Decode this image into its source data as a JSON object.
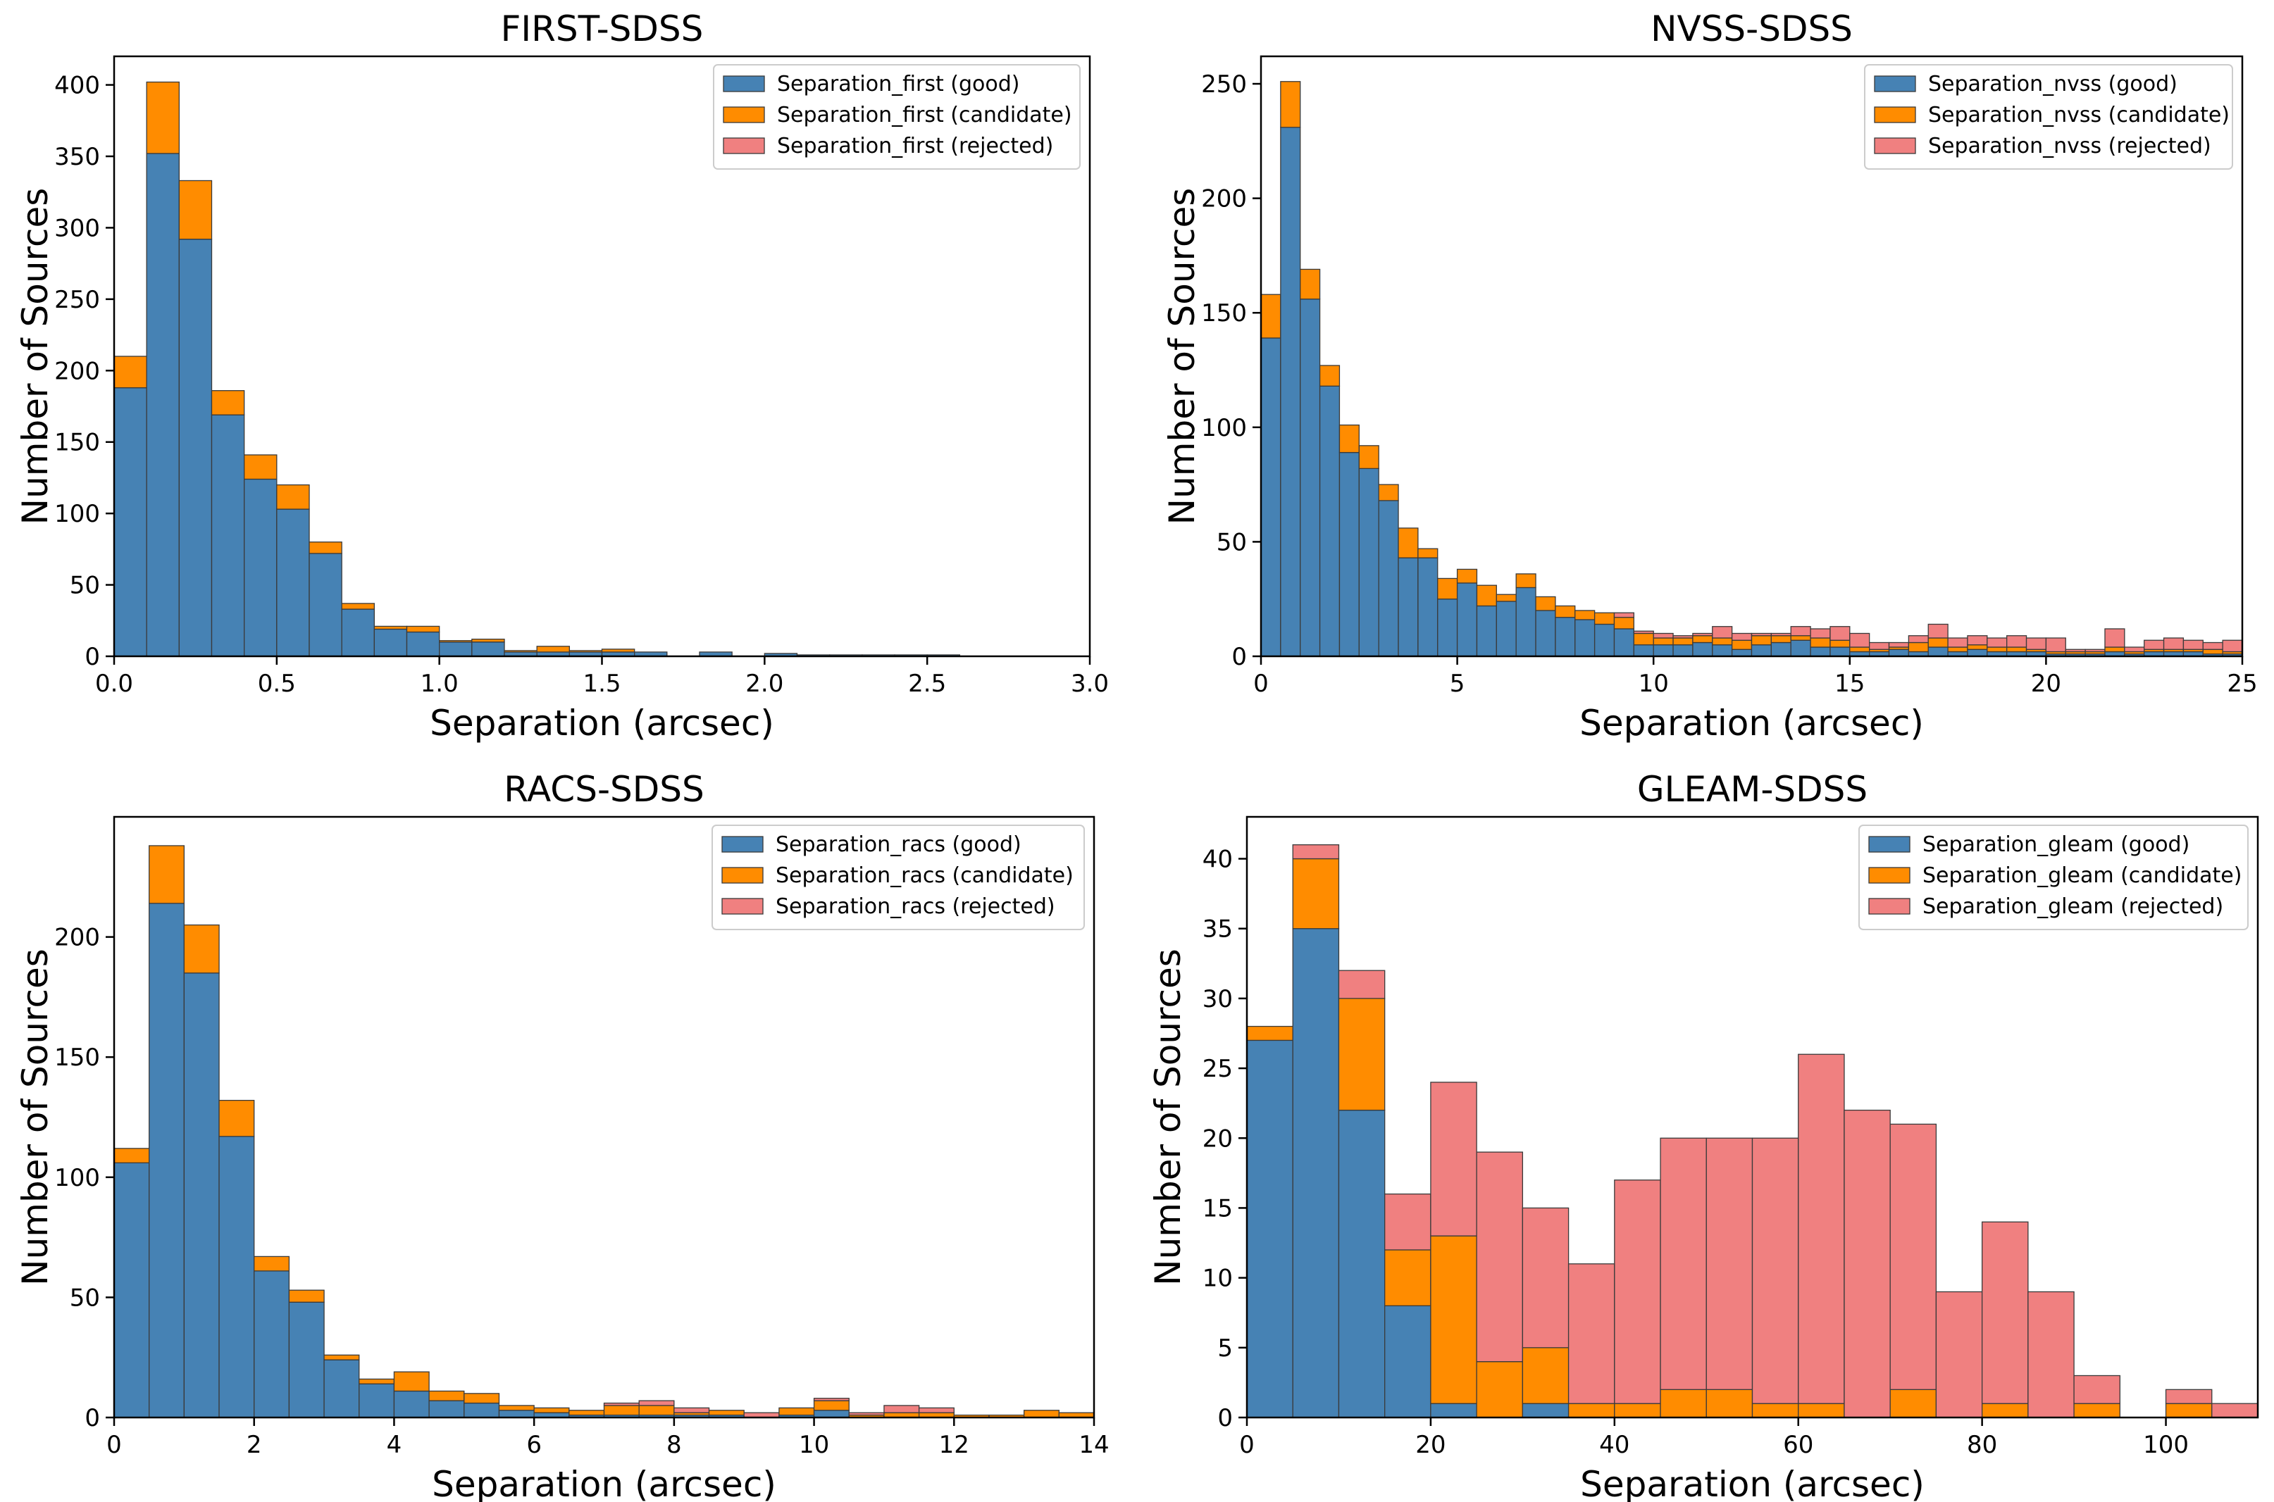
{
  "colors": {
    "good": "#4682b4",
    "candidate": "#ff8c00",
    "rejected": "#f08080"
  },
  "chart_data": [
    {
      "type": "bar",
      "stacked": true,
      "title": "FIRST-SDSS",
      "xlabel": "Separation (arcsec)",
      "ylabel": "Number of Sources",
      "xlim": [
        0,
        3.0
      ],
      "ylim": [
        0,
        420
      ],
      "xticks": [
        "0.0",
        "0.5",
        "1.0",
        "1.5",
        "2.0",
        "2.5",
        "3.0"
      ],
      "yticks": [
        "0",
        "50",
        "100",
        "150",
        "200",
        "250",
        "300",
        "350",
        "400"
      ],
      "legend_position": "top-right",
      "legend": [
        "Separation_first (good)",
        "Separation_first (candidate)",
        "Separation_first (rejected)"
      ],
      "bin_edges": [
        0,
        0.1,
        0.2,
        0.3,
        0.4,
        0.5,
        0.6,
        0.7,
        0.8,
        0.9,
        1.0,
        1.1,
        1.2,
        1.3,
        1.4,
        1.5,
        1.6,
        1.7,
        1.8,
        1.9,
        2.0,
        2.1,
        2.2,
        2.3,
        2.4,
        2.5,
        2.6
      ],
      "series": [
        {
          "name": "good",
          "values": [
            188,
            352,
            292,
            169,
            124,
            103,
            72,
            33,
            19,
            17,
            10,
            10,
            3,
            3,
            3,
            3,
            3,
            0,
            3,
            0,
            2,
            1,
            1,
            1,
            1,
            1
          ]
        },
        {
          "name": "candidate",
          "values": [
            22,
            50,
            41,
            17,
            17,
            17,
            8,
            4,
            2,
            4,
            1,
            2,
            1,
            4,
            1,
            2,
            0,
            0,
            0,
            0,
            0,
            0,
            0,
            0,
            0,
            0
          ]
        },
        {
          "name": "rejected",
          "values": [
            0,
            0,
            0,
            0,
            0,
            0,
            0,
            0,
            0,
            0,
            0,
            0,
            0,
            0,
            0,
            0,
            0,
            0,
            0,
            0,
            0,
            0,
            0,
            0,
            0,
            0
          ]
        }
      ]
    },
    {
      "type": "bar",
      "stacked": true,
      "title": "NVSS-SDSS",
      "xlabel": "Separation (arcsec)",
      "ylabel": "Number of Sources",
      "xlim": [
        0,
        25
      ],
      "ylim": [
        0,
        262
      ],
      "xticks": [
        "0",
        "5",
        "10",
        "15",
        "20",
        "25"
      ],
      "yticks": [
        "0",
        "50",
        "100",
        "150",
        "200",
        "250"
      ],
      "legend_position": "top-right",
      "legend": [
        "Separation_nvss (good)",
        "Separation_nvss (candidate)",
        "Separation_nvss (rejected)"
      ],
      "bin_edges": [
        0,
        0.5,
        1.0,
        1.5,
        2.0,
        2.5,
        3.0,
        3.5,
        4.0,
        4.5,
        5.0,
        5.5,
        6.0,
        6.5,
        7.0,
        7.5,
        8.0,
        8.5,
        9.0,
        9.5,
        10.0,
        10.5,
        11.0,
        11.5,
        12.0,
        12.5,
        13.0,
        13.5,
        14.0,
        14.5,
        15.0,
        15.5,
        16.0,
        16.5,
        17.0,
        17.5,
        18.0,
        18.5,
        19.0,
        19.5,
        20.0,
        20.5,
        21.0,
        21.5,
        22.0,
        22.5,
        23.0,
        23.5,
        24.0,
        24.5,
        25.0
      ],
      "series": [
        {
          "name": "good",
          "values": [
            139,
            231,
            156,
            118,
            89,
            82,
            68,
            43,
            43,
            25,
            32,
            22,
            24,
            30,
            20,
            17,
            16,
            14,
            12,
            5,
            5,
            5,
            6,
            5,
            3,
            5,
            6,
            7,
            4,
            4,
            2,
            2,
            3,
            2,
            4,
            2,
            3,
            2,
            2,
            2,
            1,
            1,
            1,
            2,
            1,
            2,
            2,
            2,
            1,
            1
          ]
        },
        {
          "name": "candidate",
          "values": [
            19,
            20,
            13,
            9,
            12,
            10,
            7,
            13,
            4,
            9,
            6,
            9,
            3,
            6,
            6,
            5,
            4,
            5,
            5,
            5,
            3,
            3,
            3,
            3,
            4,
            4,
            3,
            2,
            4,
            3,
            2,
            1,
            1,
            4,
            4,
            2,
            2,
            2,
            2,
            1,
            1,
            1,
            1,
            2,
            1,
            1,
            1,
            1,
            2,
            1
          ]
        },
        {
          "name": "rejected",
          "values": [
            0,
            0,
            0,
            0,
            0,
            0,
            0,
            0,
            0,
            0,
            0,
            0,
            0,
            0,
            0,
            0,
            0,
            0,
            2,
            1,
            2,
            1,
            1,
            5,
            3,
            1,
            1,
            4,
            4,
            6,
            6,
            3,
            2,
            3,
            6,
            4,
            4,
            4,
            5,
            5,
            6,
            1,
            1,
            8,
            2,
            4,
            5,
            4,
            3,
            5
          ]
        }
      ]
    },
    {
      "type": "bar",
      "stacked": true,
      "title": "RACS-SDSS",
      "xlabel": "Separation (arcsec)",
      "ylabel": "Number of Sources",
      "xlim": [
        0,
        14
      ],
      "ylim": [
        0,
        250
      ],
      "xticks": [
        "0",
        "2",
        "4",
        "6",
        "8",
        "10",
        "12",
        "14"
      ],
      "yticks": [
        "0",
        "50",
        "100",
        "150",
        "200"
      ],
      "legend_position": "top-right",
      "legend": [
        "Separation_racs (good)",
        "Separation_racs (candidate)",
        "Separation_racs (rejected)"
      ],
      "bin_edges": [
        0,
        0.5,
        1.0,
        1.5,
        2.0,
        2.5,
        3.0,
        3.5,
        4.0,
        4.5,
        5.0,
        5.5,
        6.0,
        6.5,
        7.0,
        7.5,
        8.0,
        8.5,
        9.0,
        9.5,
        10.0,
        10.5,
        11.0,
        11.5,
        12.0,
        12.5,
        13.0,
        13.5,
        14.0
      ],
      "series": [
        {
          "name": "good",
          "values": [
            106,
            214,
            185,
            117,
            61,
            48,
            24,
            14,
            11,
            7,
            6,
            3,
            2,
            1,
            1,
            1,
            1,
            1,
            0,
            1,
            3,
            0,
            0,
            0,
            0,
            0,
            0,
            0
          ]
        },
        {
          "name": "candidate",
          "values": [
            6,
            24,
            20,
            15,
            6,
            5,
            2,
            2,
            8,
            4,
            4,
            2,
            2,
            2,
            4,
            4,
            1,
            2,
            0,
            3,
            4,
            1,
            2,
            2,
            1,
            1,
            3,
            2
          ]
        },
        {
          "name": "rejected",
          "values": [
            0,
            0,
            0,
            0,
            0,
            0,
            0,
            0,
            0,
            0,
            0,
            0,
            0,
            0,
            1,
            2,
            2,
            0,
            2,
            0,
            1,
            1,
            3,
            2,
            0,
            0,
            0,
            0
          ]
        }
      ]
    },
    {
      "type": "bar",
      "stacked": true,
      "title": "GLEAM-SDSS",
      "xlabel": "Separation (arcsec)",
      "ylabel": "Number of Sources",
      "xlim": [
        0,
        110
      ],
      "ylim": [
        0,
        43
      ],
      "xticks": [
        "0",
        "20",
        "40",
        "60",
        "80",
        "100"
      ],
      "yticks": [
        "0",
        "5",
        "10",
        "15",
        "20",
        "25",
        "30",
        "35",
        "40"
      ],
      "legend_position": "top-right",
      "legend": [
        "Separation_gleam (good)",
        "Separation_gleam (candidate)",
        "Separation_gleam (rejected)"
      ],
      "bin_edges": [
        0,
        5,
        10,
        15,
        20,
        25,
        30,
        35,
        40,
        45,
        50,
        55,
        60,
        65,
        70,
        75,
        80,
        85,
        90,
        95,
        100,
        105,
        110
      ],
      "series": [
        {
          "name": "good",
          "values": [
            27,
            35,
            22,
            8,
            1,
            0,
            1,
            0,
            0,
            0,
            0,
            0,
            0,
            0,
            0,
            0,
            0,
            0,
            0,
            0,
            0,
            0
          ]
        },
        {
          "name": "candidate",
          "values": [
            1,
            5,
            8,
            4,
            12,
            4,
            4,
            1,
            1,
            2,
            2,
            1,
            1,
            0,
            2,
            0,
            1,
            0,
            1,
            0,
            1,
            0
          ]
        },
        {
          "name": "rejected",
          "values": [
            0,
            1,
            2,
            4,
            11,
            15,
            10,
            10,
            16,
            18,
            18,
            19,
            25,
            22,
            19,
            9,
            13,
            9,
            2,
            0,
            1,
            1
          ]
        }
      ]
    }
  ]
}
